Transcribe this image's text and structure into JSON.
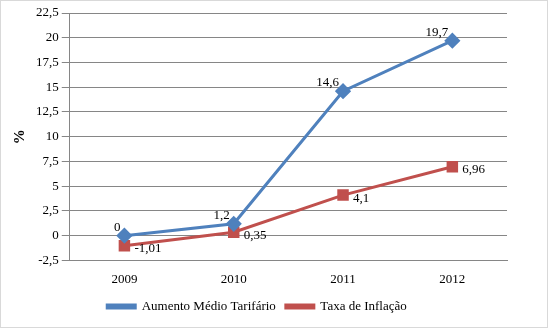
{
  "chart_data": {
    "type": "line",
    "ylabel": "%",
    "categories": [
      "2009",
      "2010",
      "2011",
      "2012"
    ],
    "series": [
      {
        "name": "Aumento Médio Tarifário",
        "color": "#4f81bd",
        "marker": "diamond",
        "line_style": "solid",
        "values": [
          0,
          1.2,
          14.6,
          19.7
        ],
        "value_labels": [
          "0",
          "1,2",
          "14,6",
          "19,7"
        ]
      },
      {
        "name": "Taxa de Inflação",
        "color": "#c0504d",
        "marker": "square",
        "line_style": "solid",
        "values": [
          -1.01,
          0.35,
          4.1,
          6.96
        ],
        "value_labels": [
          "-1,01",
          "0,35",
          "4,1",
          "6,96"
        ]
      }
    ],
    "ylim": [
      -2.5,
      22.5
    ],
    "yticks": [
      {
        "value": -2.5,
        "label": "-2,5"
      },
      0,
      {
        "value": 2.5,
        "label": "2,5"
      },
      5,
      {
        "value": 7.5,
        "label": "7,5"
      },
      10,
      {
        "value": 12.5,
        "label": "12,5"
      },
      15,
      {
        "value": 17.5,
        "label": "17,5"
      },
      20,
      {
        "value": 22.5,
        "label": "22,5"
      }
    ],
    "grid": true,
    "legend": "bottom",
    "data_labels": true
  }
}
